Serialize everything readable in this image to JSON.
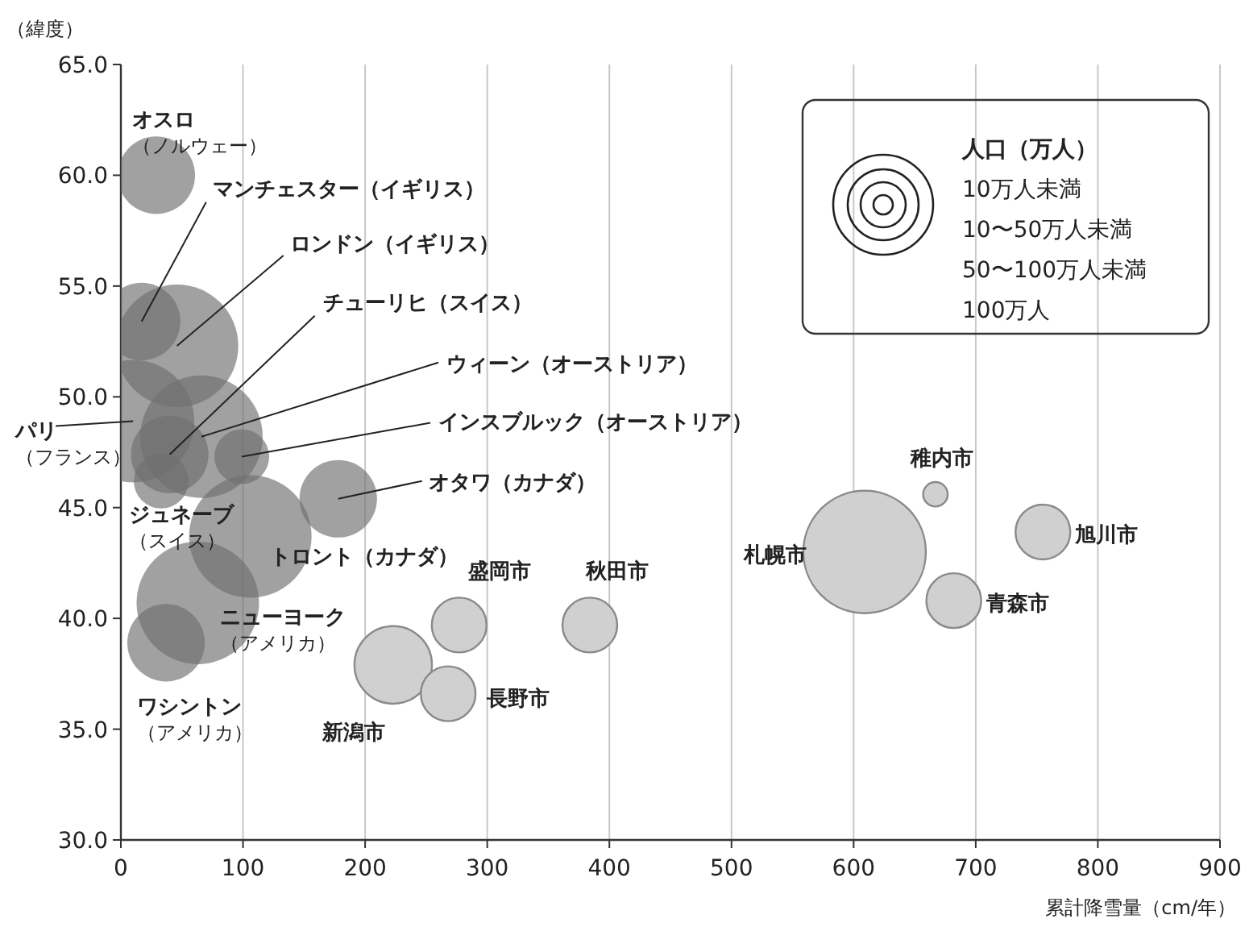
{
  "chart_data": {
    "type": "bubble",
    "xlabel": "累計降雪量（cm/年）",
    "ylabel": "（緯度）",
    "legend_title": "人口（万人）",
    "xlim": [
      0,
      900
    ],
    "xticks": [
      0,
      100,
      200,
      300,
      400,
      500,
      600,
      700,
      800,
      900
    ],
    "ylim": [
      30,
      65
    ],
    "yticks": [
      {
        "value": 30,
        "label": "30.0"
      },
      {
        "value": 35,
        "label": "35.0"
      },
      {
        "value": 40,
        "label": "40.0"
      },
      {
        "value": 45,
        "label": "45.0"
      },
      {
        "value": 50,
        "label": "50.0"
      },
      {
        "value": 55,
        "label": "55.0"
      },
      {
        "value": 60,
        "label": "60.0"
      },
      {
        "value": 65,
        "label": "65.0"
      }
    ],
    "grid": "x",
    "series": [
      {
        "color": "#6e6e6e",
        "x": [
          29,
          17,
          46,
          40,
          66,
          99,
          10,
          33,
          178,
          106,
          63,
          37
        ],
        "values": [
          60.0,
          53.4,
          52.3,
          47.4,
          48.2,
          47.3,
          48.9,
          46.2,
          45.4,
          43.7,
          40.7,
          38.9
        ],
        "sizes": [
          0.4,
          0.4,
          1,
          0.4,
          1,
          0.2,
          1,
          0.2,
          0.4,
          1,
          1,
          0.4
        ]
      },
      {
        "color": "#d0d0d0",
        "x": [
          223,
          268,
          277,
          384,
          609,
          667,
          755,
          682
        ],
        "values": [
          37.9,
          36.6,
          39.7,
          39.7,
          43.0,
          45.6,
          43.9,
          40.8
        ],
        "sizes": [
          0.4,
          0.2,
          0.2,
          0.2,
          1,
          0.04,
          0.2,
          0.2
        ]
      }
    ],
    "annotations": [
      {
        "text": "オスロ（ノルウェー）",
        "x": 29,
        "y": 60.0
      },
      {
        "text": "マンチェスター（イギリス）",
        "x": 17,
        "y": 53.4
      },
      {
        "text": "ロンドン（イギリス）",
        "x": 46,
        "y": 52.3
      },
      {
        "text": "チューリヒ（スイス）",
        "x": 40,
        "y": 47.4
      },
      {
        "text": "ウィーン（オーストリア）",
        "x": 66,
        "y": 48.2
      },
      {
        "text": "インスブルック（オーストリア）",
        "x": 99,
        "y": 47.3
      },
      {
        "text": "パリ（フランス）",
        "x": 10,
        "y": 48.9
      },
      {
        "text": "ジュネーブ（スイス）",
        "x": 33,
        "y": 46.2
      },
      {
        "text": "オタワ（カナダ）",
        "x": 178,
        "y": 45.4
      },
      {
        "text": "トロント（カナダ）",
        "x": 106,
        "y": 43.7
      },
      {
        "text": "ニューヨーク（アメリカ）",
        "x": 63,
        "y": 40.7
      },
      {
        "text": "ワシントン（アメリカ）",
        "x": 37,
        "y": 38.9
      },
      {
        "text": "新潟市",
        "x": 223,
        "y": 37.9
      },
      {
        "text": "長野市",
        "x": 268,
        "y": 36.6
      },
      {
        "text": "盛岡市",
        "x": 277,
        "y": 39.7
      },
      {
        "text": "秋田市",
        "x": 384,
        "y": 39.7
      },
      {
        "text": "札幌市",
        "x": 609,
        "y": 43.0
      },
      {
        "text": "稚内市",
        "x": 667,
        "y": 45.6
      },
      {
        "text": "旭川市",
        "x": 755,
        "y": 43.9
      },
      {
        "text": "青森市",
        "x": 682,
        "y": 40.8
      },
      "10万人未満",
      "10〜50万人未満",
      "50〜100万人未満",
      "100万人"
    ]
  }
}
